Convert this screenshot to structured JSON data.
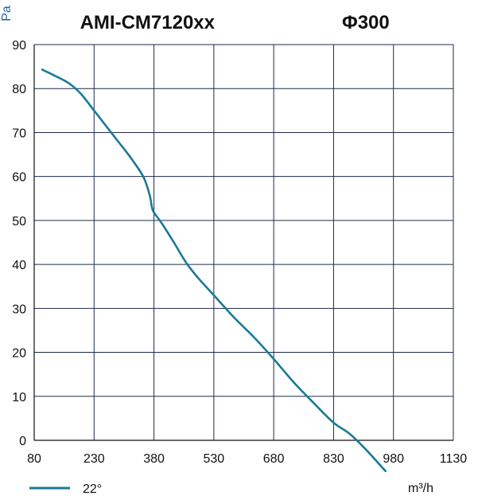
{
  "chart_data": {
    "type": "line",
    "title": "AMI-CM7120xx",
    "subtitle": "Φ300",
    "ylabel": "Pa",
    "xlabel": "m³/h",
    "xlim": [
      80,
      1130
    ],
    "ylim": [
      0,
      90
    ],
    "x_ticks": [
      "80",
      "230",
      "380",
      "530",
      "680",
      "830",
      "980",
      "1130"
    ],
    "y_ticks": [
      "0",
      "10",
      "20",
      "30",
      "40",
      "50",
      "60",
      "70",
      "80",
      "90"
    ],
    "grid": true,
    "legend_position": "bottom-left",
    "series": [
      {
        "name": "22°",
        "color": "#1b7a95",
        "x": [
          100,
          130,
          160,
          180,
          200,
          230,
          260,
          290,
          320,
          350,
          360,
          370,
          375,
          380,
          400,
          430,
          460,
          490,
          530,
          580,
          630,
          680,
          730,
          780,
          830,
          870,
          910,
          960
        ],
        "y": [
          84.3,
          83.0,
          81.6,
          80.3,
          78.5,
          75.0,
          71.5,
          68.0,
          64.5,
          60.5,
          58.5,
          55.5,
          53.0,
          51.8,
          49.3,
          45.0,
          40.5,
          37.0,
          33.0,
          28.0,
          23.5,
          18.5,
          13.2,
          8.5,
          4.0,
          1.5,
          -2.0,
          -7.0
        ]
      }
    ]
  }
}
